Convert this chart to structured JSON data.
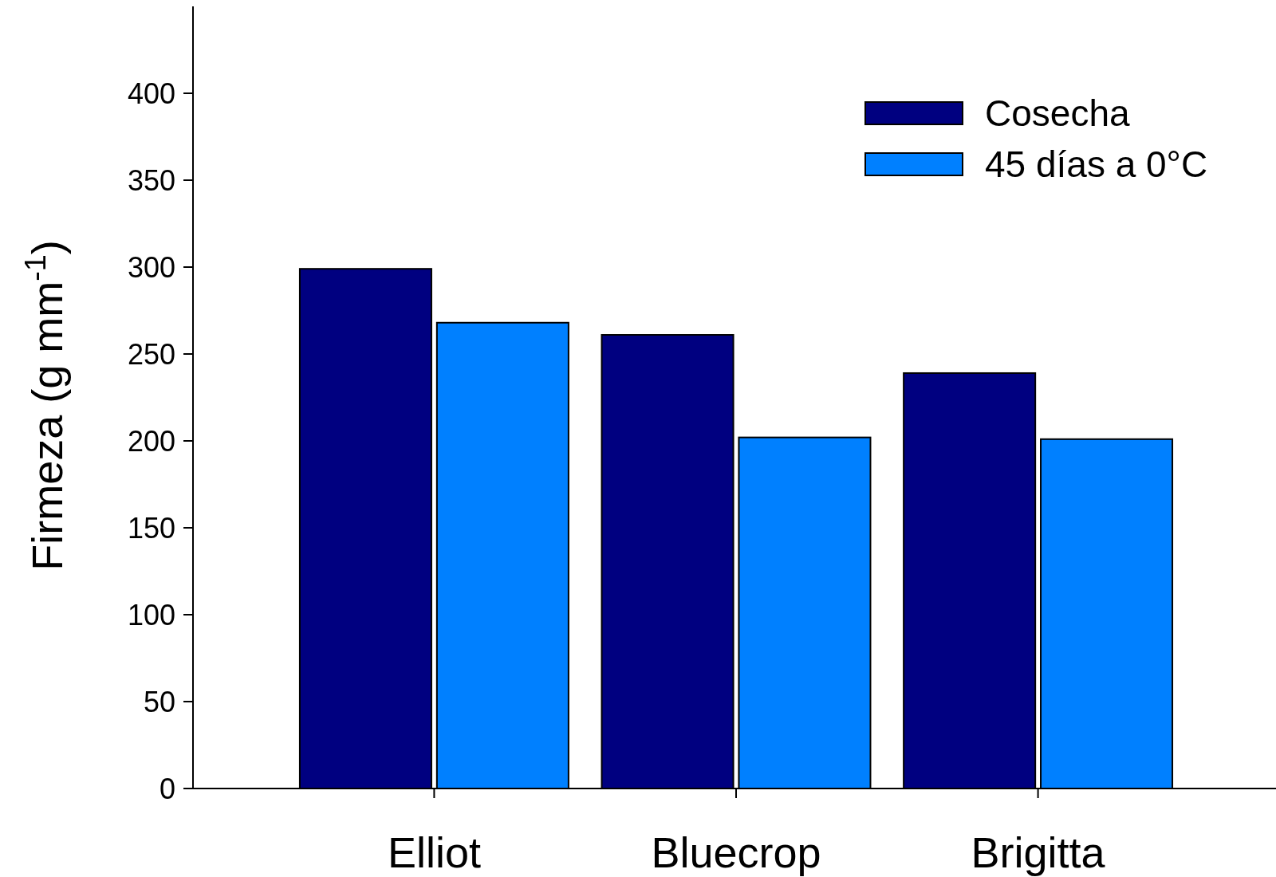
{
  "chart_data": {
    "type": "bar",
    "ylabel": "Firmeza (g mm$^{-1}$)",
    "categories": [
      "Elliot",
      "Bluecrop",
      "Brigitta"
    ],
    "series": [
      {
        "name": "Cosecha",
        "color": "#000080",
        "values": [
          299,
          261,
          239
        ]
      },
      {
        "name": "45 días a 0°C",
        "color": "#0080ff",
        "values": [
          268,
          202,
          201
        ]
      }
    ],
    "ylim": [
      0,
      450
    ],
    "yticks": [
      0,
      50,
      100,
      150,
      200,
      250,
      300,
      350,
      400
    ],
    "legend": "top right"
  }
}
